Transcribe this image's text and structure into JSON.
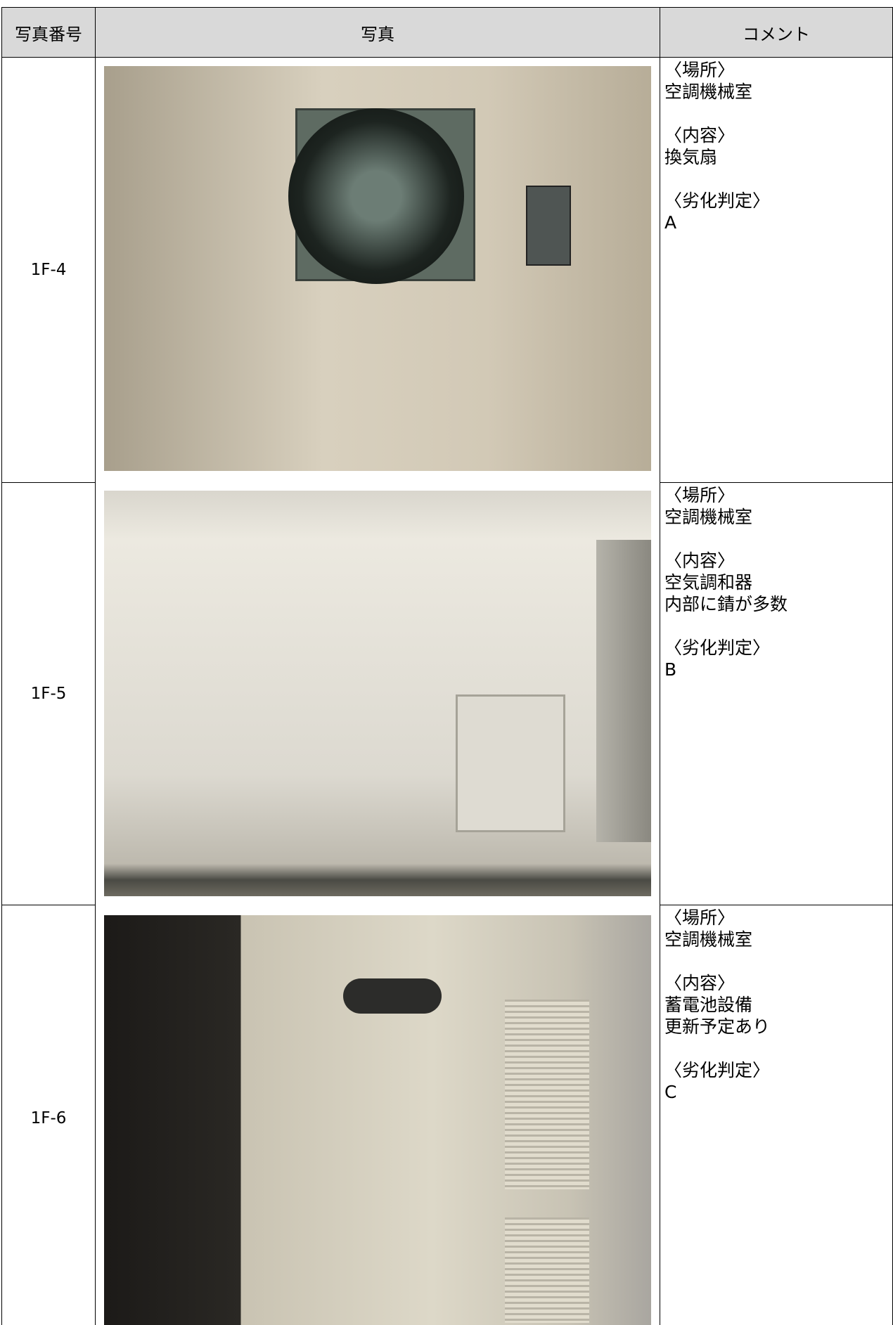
{
  "table": {
    "headers": [
      "写真番号",
      "写真",
      "コメント"
    ],
    "rows": [
      {
        "number": "1F-4",
        "sections": [
          {
            "label": "〈場所〉",
            "lines": [
              "空調機械室"
            ]
          },
          {
            "label": "〈内容〉",
            "lines": [
              "換気扇"
            ]
          },
          {
            "label": "〈劣化判定〉",
            "lines": [
              "A"
            ]
          }
        ]
      },
      {
        "number": "1F-5",
        "sections": [
          {
            "label": "〈場所〉",
            "lines": [
              "空調機械室"
            ]
          },
          {
            "label": "〈内容〉",
            "lines": [
              "空気調和器",
              "内部に錆が多数"
            ]
          },
          {
            "label": "〈劣化判定〉",
            "lines": [
              "B"
            ]
          }
        ]
      },
      {
        "number": "1F-6",
        "sections": [
          {
            "label": "〈場所〉",
            "lines": [
              "空調機械室"
            ]
          },
          {
            "label": "〈内容〉",
            "lines": [
              "蓄電池設備",
              "更新予定あり"
            ]
          },
          {
            "label": "〈劣化判定〉",
            "lines": [
              "C"
            ]
          }
        ]
      }
    ]
  }
}
